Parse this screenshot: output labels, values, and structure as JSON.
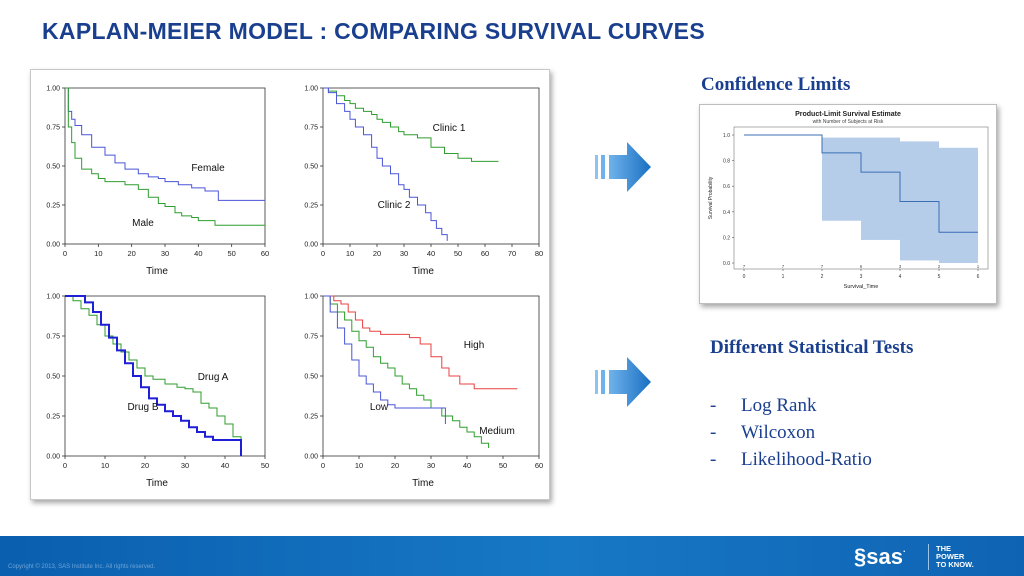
{
  "slide": {
    "title": "KAPLAN-MEIER MODEL : COMPARING SURVIVAL CURVES",
    "copyright": "Copyright © 2013, SAS Institute Inc. All rights reserved.",
    "logo_text": "sas",
    "tagline": [
      "THE",
      "POWER",
      "TO KNOW."
    ],
    "icons": [
      "arrow-right-icon",
      "sas-logo-icon"
    ]
  },
  "right": {
    "confidence_heading": "Confidence Limits",
    "tests_heading": "Different Statistical Tests",
    "tests": [
      {
        "dash": "-",
        "label": "Log Rank"
      },
      {
        "dash": "-",
        "label": "Wilcoxon"
      },
      {
        "dash": "-",
        "label": "Likelihood-Ratio"
      }
    ]
  },
  "chart_data": [
    {
      "type": "line",
      "step": true,
      "xlabel": "Time",
      "xlim": [
        0,
        60
      ],
      "ylim": [
        0,
        1
      ],
      "xticks": [
        0,
        10,
        20,
        30,
        40,
        50,
        60
      ],
      "yticks": [
        "0.00",
        "0.25",
        "0.50",
        "0.75",
        "1.00"
      ],
      "series": [
        {
          "name": "Female",
          "color": "#4a55d8",
          "x": [
            0,
            1,
            2,
            3,
            5,
            8,
            12,
            15,
            18,
            22,
            25,
            28,
            30,
            34,
            38,
            42,
            46,
            50,
            55,
            60
          ],
          "y": [
            1,
            0.85,
            0.8,
            0.76,
            0.7,
            0.62,
            0.57,
            0.52,
            0.48,
            0.45,
            0.43,
            0.42,
            0.4,
            0.38,
            0.36,
            0.34,
            0.28,
            0.28,
            0.28,
            0.28
          ]
        },
        {
          "name": "Male",
          "color": "#2e9e2e",
          "x": [
            0,
            1,
            2,
            3,
            5,
            8,
            10,
            12,
            15,
            18,
            20,
            22,
            25,
            28,
            30,
            33,
            35,
            38,
            40,
            45,
            50,
            55,
            60
          ],
          "y": [
            1,
            0.75,
            0.65,
            0.55,
            0.48,
            0.45,
            0.42,
            0.4,
            0.4,
            0.38,
            0.38,
            0.35,
            0.3,
            0.26,
            0.24,
            0.2,
            0.18,
            0.17,
            0.15,
            0.12,
            0.12,
            0.12,
            0.12
          ]
        }
      ]
    },
    {
      "type": "line",
      "step": true,
      "xlabel": "Time",
      "xlim": [
        0,
        80
      ],
      "ylim": [
        0,
        1
      ],
      "xticks": [
        0,
        10,
        20,
        30,
        40,
        50,
        60,
        70,
        80
      ],
      "yticks": [
        "0.00",
        "0.25",
        "0.50",
        "0.75",
        "1.00"
      ],
      "series": [
        {
          "name": "Clinic 1",
          "color": "#2e9e2e",
          "x": [
            0,
            2,
            5,
            8,
            10,
            12,
            15,
            18,
            20,
            22,
            25,
            28,
            30,
            35,
            40,
            45,
            50,
            55,
            60,
            65
          ],
          "y": [
            1,
            0.98,
            0.95,
            0.92,
            0.9,
            0.87,
            0.85,
            0.83,
            0.8,
            0.78,
            0.75,
            0.72,
            0.7,
            0.68,
            0.62,
            0.58,
            0.55,
            0.53,
            0.53,
            0.53
          ]
        },
        {
          "name": "Clinic 2",
          "color": "#4a55d8",
          "x": [
            0,
            2,
            5,
            8,
            10,
            12,
            15,
            18,
            20,
            22,
            25,
            28,
            30,
            32,
            35,
            38,
            40,
            42,
            44,
            46
          ],
          "y": [
            1,
            0.97,
            0.9,
            0.85,
            0.8,
            0.75,
            0.7,
            0.62,
            0.55,
            0.5,
            0.45,
            0.38,
            0.35,
            0.3,
            0.25,
            0.2,
            0.15,
            0.1,
            0.06,
            0.02
          ]
        }
      ]
    },
    {
      "type": "line",
      "step": true,
      "xlabel": "Time",
      "xlim": [
        0,
        50
      ],
      "ylim": [
        0,
        1
      ],
      "xticks": [
        0,
        10,
        20,
        30,
        40,
        50
      ],
      "yticks": [
        "0.00",
        "0.25",
        "0.50",
        "0.75",
        "1.00"
      ],
      "series": [
        {
          "name": "Drug A",
          "color": "#2e9e2e",
          "x": [
            0,
            2,
            4,
            6,
            8,
            10,
            12,
            14,
            16,
            18,
            20,
            22,
            25,
            28,
            30,
            32,
            34,
            36,
            38,
            40,
            42,
            44
          ],
          "y": [
            1,
            0.97,
            0.92,
            0.88,
            0.82,
            0.75,
            0.7,
            0.65,
            0.6,
            0.55,
            0.5,
            0.48,
            0.45,
            0.43,
            0.42,
            0.4,
            0.33,
            0.3,
            0.25,
            0.2,
            0.12,
            0.05
          ]
        },
        {
          "name": "Drug B",
          "color": "#1f1fd6",
          "x": [
            0,
            3,
            5,
            7,
            9,
            11,
            13,
            15,
            17,
            19,
            21,
            23,
            25,
            27,
            29,
            31,
            33,
            35,
            37,
            40,
            43,
            44
          ],
          "y": [
            1,
            1,
            0.96,
            0.9,
            0.82,
            0.74,
            0.66,
            0.58,
            0.5,
            0.43,
            0.36,
            0.32,
            0.28,
            0.25,
            0.22,
            0.18,
            0.15,
            0.12,
            0.1,
            0.1,
            0.1,
            0
          ]
        }
      ]
    },
    {
      "type": "line",
      "step": true,
      "xlabel": "Time",
      "xlim": [
        0,
        60
      ],
      "ylim": [
        0,
        1
      ],
      "xticks": [
        0,
        10,
        20,
        30,
        40,
        50,
        60
      ],
      "yticks": [
        "0.00",
        "0.25",
        "0.50",
        "0.75",
        "1.00"
      ],
      "series": [
        {
          "name": "High",
          "color": "#e84040",
          "x": [
            0,
            3,
            5,
            7,
            9,
            11,
            13,
            16,
            20,
            24,
            27,
            30,
            33,
            35,
            38,
            42,
            46,
            50,
            54
          ],
          "y": [
            1,
            0.97,
            0.95,
            0.9,
            0.85,
            0.8,
            0.78,
            0.76,
            0.76,
            0.74,
            0.7,
            0.62,
            0.55,
            0.5,
            0.45,
            0.42,
            0.42,
            0.42,
            0.42
          ]
        },
        {
          "name": "Medium",
          "color": "#2e9e2e",
          "x": [
            0,
            2,
            4,
            6,
            8,
            10,
            12,
            14,
            16,
            18,
            20,
            22,
            24,
            26,
            28,
            30,
            33,
            36,
            38,
            40,
            42,
            44,
            46
          ],
          "y": [
            1,
            0.95,
            0.9,
            0.85,
            0.78,
            0.72,
            0.68,
            0.62,
            0.58,
            0.55,
            0.5,
            0.45,
            0.42,
            0.38,
            0.35,
            0.3,
            0.25,
            0.22,
            0.18,
            0.15,
            0.12,
            0.08,
            0.05
          ]
        },
        {
          "name": "Low",
          "color": "#4a55d8",
          "x": [
            0,
            2,
            4,
            6,
            8,
            10,
            12,
            14,
            16,
            18,
            20,
            24,
            28,
            30,
            34
          ],
          "y": [
            1,
            0.9,
            0.8,
            0.7,
            0.6,
            0.5,
            0.45,
            0.4,
            0.35,
            0.32,
            0.3,
            0.3,
            0.3,
            0.3,
            0.2
          ]
        }
      ]
    },
    {
      "type": "line",
      "step": true,
      "title": "Product-Limit Survival Estimate",
      "subtitle": "with Number of Subjects at Risk",
      "xlabel": "Survival_Time",
      "ylabel": "Survival Probability",
      "xlim": [
        0,
        6
      ],
      "ylim": [
        0,
        1
      ],
      "xticks": [
        0,
        1,
        2,
        3,
        4,
        5,
        6
      ],
      "yticks": [
        "0.0",
        "0.2",
        "0.4",
        "0.6",
        "0.8",
        "1.0"
      ],
      "at_risk": [
        7,
        7,
        7,
        6,
        3,
        2,
        1
      ],
      "series": [
        {
          "color": "#3a6fb4",
          "x": [
            0,
            2,
            3,
            4,
            5,
            6
          ],
          "y": [
            1,
            0.86,
            0.71,
            0.48,
            0.24,
            0.24
          ]
        }
      ],
      "band": {
        "x": [
          2,
          3,
          4,
          5
        ],
        "lower": [
          0.33,
          0.18,
          0.02,
          0.0
        ],
        "upper": [
          0.98,
          0.98,
          0.95,
          0.9
        ]
      }
    }
  ]
}
